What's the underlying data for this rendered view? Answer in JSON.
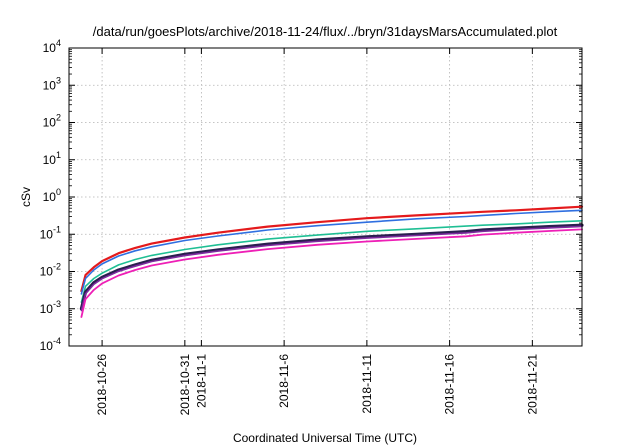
{
  "chart_data": {
    "type": "line",
    "title": "/data/run/goesPlots/archive/2018-11-24/flux/../bryn/31daysMarsAccumulated.plot",
    "xlabel": "Coordinated Universal Time (UTC)",
    "ylabel": "cSv",
    "y_scale": "log",
    "ylim": [
      0.0001,
      10000
    ],
    "xlim": [
      "2018-10-24T00:00",
      "2018-11-24T00:00"
    ],
    "grid": true,
    "legend": "none",
    "y_ticks": [
      {
        "value": 0.0001,
        "base": "10",
        "exp": "-4"
      },
      {
        "value": 0.001,
        "base": "10",
        "exp": "-3"
      },
      {
        "value": 0.01,
        "base": "10",
        "exp": "-2"
      },
      {
        "value": 0.1,
        "base": "10",
        "exp": "-1"
      },
      {
        "value": 1,
        "base": "10",
        "exp": "0"
      },
      {
        "value": 10,
        "base": "10",
        "exp": "1"
      },
      {
        "value": 100,
        "base": "10",
        "exp": "2"
      },
      {
        "value": 1000,
        "base": "10",
        "exp": "3"
      },
      {
        "value": 10000,
        "base": "10",
        "exp": "4"
      }
    ],
    "x_ticks": [
      {
        "value": "2018-10-26",
        "label": "2018-10-26"
      },
      {
        "value": "2018-10-31",
        "label": "2018-10-31"
      },
      {
        "value": "2018-11-01",
        "label": "2018-11-1"
      },
      {
        "value": "2018-11-06",
        "label": "2018-11-6"
      },
      {
        "value": "2018-11-11",
        "label": "2018-11-11"
      },
      {
        "value": "2018-11-16",
        "label": "2018-11-16"
      },
      {
        "value": "2018-11-21",
        "label": "2018-11-21"
      }
    ],
    "x": [
      "2018-10-24T18:00",
      "2018-10-25T00:00",
      "2018-10-25T12:00",
      "2018-10-26T00:00",
      "2018-10-27T00:00",
      "2018-10-28T00:00",
      "2018-10-29T00:00",
      "2018-10-31T00:00",
      "2018-11-02T00:00",
      "2018-11-05T00:00",
      "2018-11-08T00:00",
      "2018-11-11T00:00",
      "2018-11-14T00:00",
      "2018-11-17T00:00",
      "2018-11-18T00:00",
      "2018-11-20T00:00",
      "2018-11-22T00:00",
      "2018-11-24T00:00"
    ],
    "series": [
      {
        "color": "#e41a1c",
        "width": 2.2,
        "values": [
          0.003,
          0.008,
          0.013,
          0.019,
          0.031,
          0.043,
          0.056,
          0.082,
          0.11,
          0.16,
          0.21,
          0.27,
          0.32,
          0.38,
          0.4,
          0.44,
          0.49,
          0.55
        ]
      },
      {
        "color": "#2f6fe0",
        "width": 1.6,
        "values": [
          0.0025,
          0.0065,
          0.011,
          0.016,
          0.026,
          0.036,
          0.046,
          0.068,
          0.09,
          0.13,
          0.17,
          0.21,
          0.26,
          0.3,
          0.32,
          0.36,
          0.4,
          0.44
        ]
      },
      {
        "color": "#1fbf94",
        "width": 1.6,
        "values": [
          0.0015,
          0.004,
          0.0065,
          0.009,
          0.015,
          0.021,
          0.027,
          0.039,
          0.052,
          0.074,
          0.095,
          0.12,
          0.14,
          0.165,
          0.175,
          0.19,
          0.21,
          0.23
        ]
      },
      {
        "color": "#2a1f4f",
        "width": 3.2,
        "values": [
          0.001,
          0.0028,
          0.005,
          0.007,
          0.011,
          0.015,
          0.02,
          0.029,
          0.038,
          0.054,
          0.07,
          0.085,
          0.1,
          0.118,
          0.13,
          0.145,
          0.16,
          0.175
        ]
      },
      {
        "color": "#7d2a9e",
        "width": 1.6,
        "values": [
          0.0009,
          0.0025,
          0.0045,
          0.0064,
          0.0101,
          0.0139,
          0.0185,
          0.0268,
          0.0352,
          0.05,
          0.0646,
          0.0787,
          0.0925,
          0.109,
          0.12,
          0.134,
          0.148,
          0.162
        ]
      },
      {
        "color": "#ee1fb6",
        "width": 1.8,
        "values": [
          0.0006,
          0.0018,
          0.0032,
          0.0048,
          0.0078,
          0.011,
          0.0145,
          0.021,
          0.028,
          0.04,
          0.052,
          0.064,
          0.075,
          0.088,
          0.098,
          0.11,
          0.122,
          0.135
        ]
      }
    ]
  }
}
